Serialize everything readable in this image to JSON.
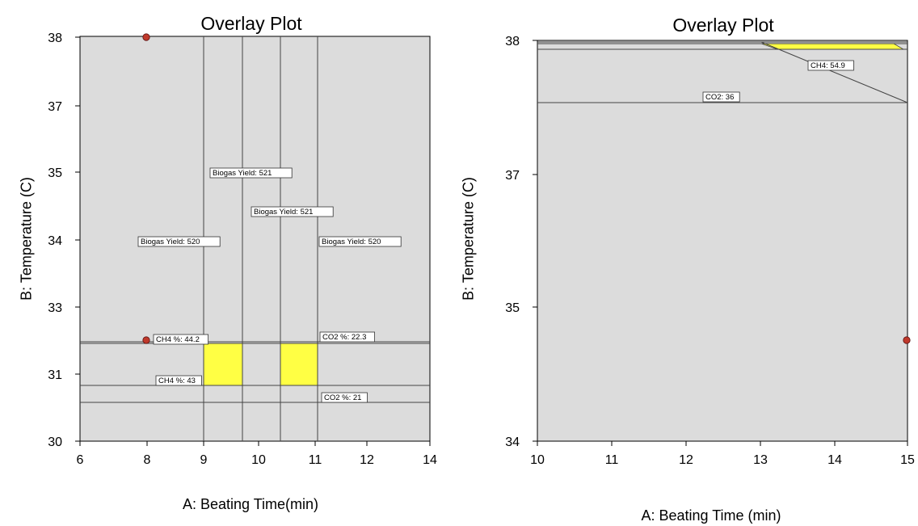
{
  "chart_data": [
    {
      "type": "contour-overlay",
      "panel": "a",
      "title": "Overlay Plot",
      "xlabel": "A: Beating Time(min)",
      "ylabel": "B: Temperature (C)",
      "xticks": [
        "6",
        "8",
        "9",
        "10",
        "11",
        "12",
        "14"
      ],
      "yticks": [
        "30",
        "31",
        "33",
        "34",
        "35",
        "37",
        "38"
      ],
      "contours": [
        {
          "label": "Biogas Yield: 520",
          "orientation": "vertical",
          "value": 520
        },
        {
          "label": "Biogas Yield: 521",
          "orientation": "vertical",
          "value": 521
        },
        {
          "label": "Biogas Yield: 521",
          "orientation": "vertical",
          "value": 521
        },
        {
          "label": "Biogas Yield: 520",
          "orientation": "vertical",
          "value": 520
        },
        {
          "label": "CH4 %: 44.2",
          "orientation": "horizontal",
          "value": 44.2
        },
        {
          "label": "CO2 %: 22.3",
          "orientation": "horizontal",
          "value": 22.3
        },
        {
          "label": "CH4 %: 43",
          "orientation": "horizontal",
          "value": 43
        },
        {
          "label": "CO2 %: 21",
          "orientation": "horizontal",
          "value": 21
        }
      ],
      "feasible_regions": 2,
      "design_points": 2,
      "colors": {
        "background": "#dcdcdc",
        "feasible": "#ffff44",
        "point": "#c0392b"
      }
    },
    {
      "type": "contour-overlay",
      "panel": "b",
      "title": "Overlay Plot",
      "xlabel": "A: Beating Time (min)",
      "ylabel": "B: Temperature (C)",
      "xticks": [
        "10",
        "11",
        "12",
        "13",
        "14",
        "15"
      ],
      "yticks": [
        "34",
        "35",
        "37",
        "38"
      ],
      "contours": [
        {
          "label": "CH4: 54.9",
          "orientation": "diagonal",
          "value": 54.9
        },
        {
          "label": "CO2: 36",
          "orientation": "horizontal",
          "value": 36
        }
      ],
      "feasible_regions": 1,
      "design_points": 1,
      "colors": {
        "background": "#dcdcdc",
        "feasible": "#ffff44",
        "point": "#c0392b"
      }
    }
  ]
}
